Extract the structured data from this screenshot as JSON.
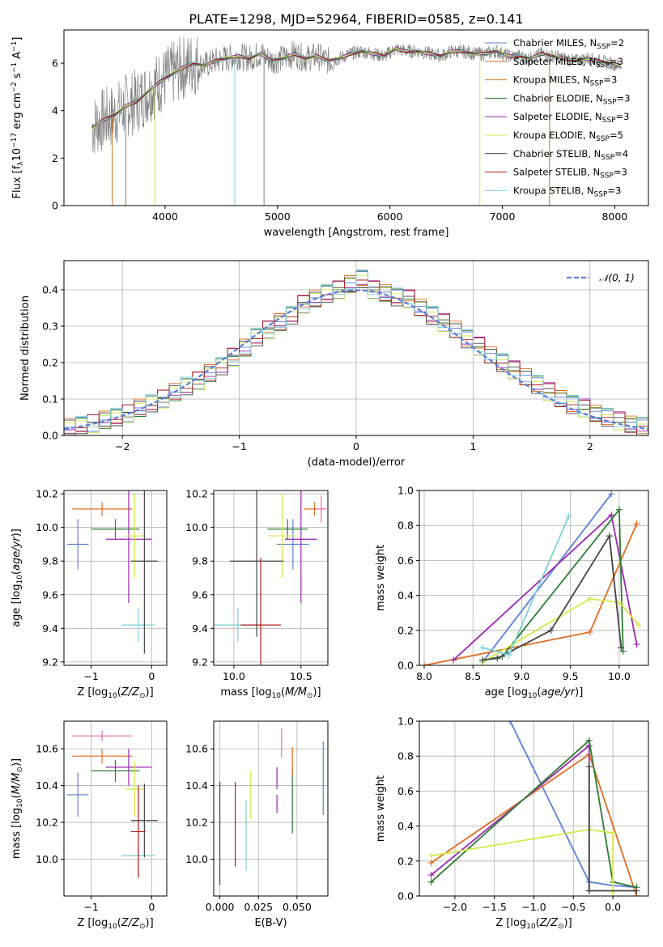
{
  "figure_title": "PLATE=1298, MJD=52964, FIBERID=0585, z=0.141",
  "colors": {
    "cmiles": "#5b7fd8",
    "smiles": "#e06c20",
    "kmiles": "#e07a2a",
    "celodie": "#2e7d32",
    "selodie": "#9b27b0",
    "kelodie": "#d4e84a",
    "cstelib": "#444444",
    "sstelib": "#b01c1c",
    "kstelib": "#7dd0d8",
    "data": "#808080",
    "pink": "#ef6fb0"
  },
  "chart_data": [
    {
      "id": "spectrum",
      "type": "line",
      "title": "PLATE=1298, MJD=52964, FIBERID=0585, z=0.141",
      "xlabel": "wavelength [Angstrom, rest frame]",
      "ylabel": "Flux [f_λ 10^-17 erg cm^-2 s^-1 A^-1]",
      "xlim": [
        3100,
        8300
      ],
      "ylim": [
        0,
        7.4
      ],
      "xticks": [
        "4000",
        "5000",
        "6000",
        "7000",
        "8000"
      ],
      "yticks": [
        "0",
        "2",
        "4",
        "6"
      ],
      "legend_position": "right",
      "x": [
        3350,
        3450,
        3550,
        3650,
        3750,
        3850,
        3950,
        4050,
        4150,
        4250,
        4350,
        4450,
        4550,
        4650,
        4750,
        4850,
        4950,
        5050,
        5150,
        5250,
        5350,
        5450,
        5550,
        5650,
        5750,
        5850,
        5950,
        6050,
        6150,
        6250,
        6350,
        6450,
        6550,
        6650,
        6750,
        6850,
        6950,
        7050,
        7150,
        7250,
        7350,
        7450,
        7550,
        7650,
        7750,
        7850,
        7950,
        8050
      ],
      "y": [
        3.3,
        3.6,
        3.8,
        4.2,
        4.4,
        4.8,
        5.2,
        5.5,
        5.8,
        6.0,
        5.9,
        6.1,
        6.2,
        6.3,
        6.2,
        6.4,
        6.1,
        6.2,
        6.4,
        6.2,
        6.3,
        6.1,
        6.2,
        6.4,
        6.5,
        6.4,
        6.3,
        6.6,
        6.5,
        6.5,
        6.4,
        6.3,
        6.5,
        6.5,
        6.4,
        6.4,
        6.5,
        6.3,
        6.3,
        6.2,
        6.4,
        6.3,
        6.2,
        6.1,
        6.2,
        6.1,
        6.0,
        5.9
      ],
      "series": [
        {
          "label": "Chabrier MILES, N",
          "sub": "SSP",
          "count": "=2",
          "color": "#5b7fd8"
        },
        {
          "label": "Salpeter MILES, N",
          "sub": "SSP",
          "count": "=3",
          "color": "#e06c20"
        },
        {
          "label": "Kroupa MILES, N",
          "sub": "SSP",
          "count": "=3",
          "color": "#e07a2a"
        },
        {
          "label": "Chabrier ELODIE, N",
          "sub": "SSP",
          "count": "=3",
          "color": "#2e7d32"
        },
        {
          "label": "Salpeter ELODIE, N",
          "sub": "SSP",
          "count": "=3",
          "color": "#9b27b0"
        },
        {
          "label": "Kroupa ELODIE, N",
          "sub": "SSP",
          "count": "=5",
          "color": "#d4e84a"
        },
        {
          "label": "Chabrier STELIB, N",
          "sub": "SSP",
          "count": "=4",
          "color": "#444444"
        },
        {
          "label": "Salpeter STELIB, N",
          "sub": "SSP",
          "count": "=3",
          "color": "#b01c1c"
        },
        {
          "label": "Kroupa STELIB, N",
          "sub": "SSP",
          "count": "=3",
          "color": "#7dd0d8"
        }
      ]
    },
    {
      "id": "residual_hist",
      "type": "line",
      "xlabel": "(data-model)/error",
      "ylabel": "Normed distribution",
      "xlim": [
        -2.5,
        2.5
      ],
      "ylim": [
        0,
        0.48
      ],
      "xticks": [
        "−2",
        "−1",
        "0",
        "1",
        "2"
      ],
      "yticks": [
        "0.0",
        "0.1",
        "0.2",
        "0.3",
        "0.4"
      ],
      "grid": true,
      "legend_position": "top-right",
      "legend": "N(0,1)",
      "x": [
        -2.5,
        -2.4,
        -2.3,
        -2.2,
        -2.1,
        -2.0,
        -1.9,
        -1.8,
        -1.7,
        -1.6,
        -1.5,
        -1.4,
        -1.3,
        -1.2,
        -1.1,
        -1.0,
        -0.9,
        -0.8,
        -0.7,
        -0.6,
        -0.5,
        -0.4,
        -0.3,
        -0.2,
        -0.1,
        0.0,
        0.1,
        0.2,
        0.3,
        0.4,
        0.5,
        0.6,
        0.7,
        0.8,
        0.9,
        1.0,
        1.1,
        1.2,
        1.3,
        1.4,
        1.5,
        1.6,
        1.7,
        1.8,
        1.9,
        2.0,
        2.1,
        2.2,
        2.3,
        2.4
      ],
      "y": [
        0.022,
        0.028,
        0.033,
        0.042,
        0.05,
        0.06,
        0.075,
        0.088,
        0.1,
        0.118,
        0.135,
        0.15,
        0.17,
        0.19,
        0.215,
        0.24,
        0.27,
        0.29,
        0.31,
        0.33,
        0.36,
        0.375,
        0.39,
        0.4,
        0.415,
        0.43,
        0.4,
        0.39,
        0.38,
        0.375,
        0.35,
        0.33,
        0.31,
        0.29,
        0.265,
        0.245,
        0.22,
        0.2,
        0.18,
        0.16,
        0.14,
        0.12,
        0.1,
        0.085,
        0.075,
        0.06,
        0.05,
        0.04,
        0.03,
        0.025
      ]
    },
    {
      "id": "z_vs_age",
      "type": "scatter",
      "xlabel": "Z [log10(Z/Z⊙)]",
      "ylabel": "age  [log10(age/yr)]",
      "xlim": [
        -1.45,
        0.25
      ],
      "ylim": [
        9.18,
        10.22
      ],
      "xticks": [
        "−1",
        "0"
      ],
      "yticks": [
        "9.2",
        "9.4",
        "9.6",
        "9.8",
        "10.0",
        "10.2"
      ],
      "grid": true,
      "points": [
        {
          "x": -1.22,
          "y": 9.9,
          "xerr": 0.18,
          "yerr": 0.15,
          "color": "#5b7fd8"
        },
        {
          "x": -0.82,
          "y": 10.11,
          "xerr": 0.5,
          "yerr": 0.04,
          "color": "#e06c20"
        },
        {
          "x": -0.38,
          "y": 9.93,
          "xerr": 0.38,
          "yerr": 0.38,
          "color": "#9b27b0"
        },
        {
          "x": -0.6,
          "y": 9.99,
          "xerr": 0.4,
          "yerr": 0.06,
          "color": "#2e7d32"
        },
        {
          "x": -0.28,
          "y": 9.95,
          "xerr": 0.15,
          "yerr": 0.25,
          "color": "#d4e84a"
        },
        {
          "x": -0.22,
          "y": 9.42,
          "xerr": 0.28,
          "yerr": 0.1,
          "color": "#7dd0d8"
        },
        {
          "x": -0.12,
          "y": 9.8,
          "xerr": 0.22,
          "yerr": 0.55,
          "color": "#444444"
        }
      ]
    },
    {
      "id": "mass_vs_age",
      "type": "scatter",
      "xlabel": "mass [log10(M/M⊙)]",
      "ylabel": "",
      "xlim": [
        9.85,
        10.7
      ],
      "ylim": [
        9.18,
        10.22
      ],
      "xticks": [
        "10.0",
        "10.5"
      ],
      "yticks": [
        "9.2",
        "9.4",
        "9.6",
        "9.8",
        "10.0",
        "10.2"
      ],
      "grid": true,
      "points": [
        {
          "x": 10.44,
          "y": 9.9,
          "xerr": 0.12,
          "yerr": 0.15,
          "color": "#5b7fd8"
        },
        {
          "x": 10.6,
          "y": 10.11,
          "xerr": 0.08,
          "yerr": 0.04,
          "color": "#e06c20"
        },
        {
          "x": 10.5,
          "y": 9.93,
          "xerr": 0.12,
          "yerr": 0.38,
          "color": "#9b27b0"
        },
        {
          "x": 10.4,
          "y": 9.99,
          "xerr": 0.15,
          "yerr": 0.06,
          "color": "#2e7d32"
        },
        {
          "x": 10.36,
          "y": 9.95,
          "xerr": 0.1,
          "yerr": 0.25,
          "color": "#d4e84a"
        },
        {
          "x": 10.03,
          "y": 9.42,
          "xerr": 0.22,
          "yerr": 0.1,
          "color": "#7dd0d8"
        },
        {
          "x": 10.17,
          "y": 9.8,
          "xerr": 0.2,
          "yerr": 0.45,
          "color": "#444444"
        },
        {
          "x": 10.2,
          "y": 9.42,
          "xerr": 0.15,
          "yerr": 0.4,
          "color": "#b01c1c"
        },
        {
          "x": 10.65,
          "y": 10.11,
          "xerr": 0.04,
          "yerr": 0.08,
          "color": "#ef6fb0"
        }
      ]
    },
    {
      "id": "age_vs_weight",
      "type": "line",
      "xlabel": "age  [log10(age/yr)]",
      "ylabel": "mass weight",
      "xlim": [
        7.95,
        10.3
      ],
      "ylim": [
        0,
        1
      ],
      "xticks": [
        "8.0",
        "8.5",
        "9.0",
        "9.5",
        "10.0"
      ],
      "yticks": [
        "0.0",
        "0.2",
        "0.4",
        "0.6",
        "0.8",
        "1.0"
      ],
      "grid": true,
      "series": [
        {
          "color": "#5b7fd8",
          "x": [
            8.6,
            9.92
          ],
          "y": [
            0.02,
            0.98
          ]
        },
        {
          "color": "#e06c20",
          "x": [
            8.0,
            9.7,
            10.18
          ],
          "y": [
            0.0,
            0.19,
            0.81
          ]
        },
        {
          "color": "#9b27b0",
          "x": [
            8.3,
            9.92,
            10.18
          ],
          "y": [
            0.03,
            0.86,
            0.12
          ]
        },
        {
          "color": "#2e7d32",
          "x": [
            8.6,
            8.8,
            10.0,
            10.04
          ],
          "y": [
            0.03,
            0.05,
            0.89,
            0.08
          ]
        },
        {
          "color": "#d4e84a",
          "x": [
            8.6,
            9.7,
            10.0,
            10.2
          ],
          "y": [
            0.02,
            0.38,
            0.36,
            0.23
          ]
        },
        {
          "color": "#444444",
          "x": [
            8.6,
            8.75,
            9.3,
            9.9,
            10.02
          ],
          "y": [
            0.03,
            0.04,
            0.2,
            0.74,
            0.1
          ]
        },
        {
          "color": "#7dd0d8",
          "x": [
            8.6,
            8.87,
            9.48
          ],
          "y": [
            0.1,
            0.06,
            0.85
          ]
        }
      ]
    },
    {
      "id": "z_vs_mass",
      "type": "scatter",
      "xlabel": "Z [log10(Z/Z⊙)]",
      "ylabel": "mass [log10(M/M⊙)]",
      "xlim": [
        -1.45,
        0.25
      ],
      "ylim": [
        9.8,
        10.75
      ],
      "xticks": [
        "−1",
        "0"
      ],
      "yticks": [
        "10.0",
        "10.2",
        "10.4",
        "10.6"
      ],
      "grid": true,
      "points": [
        {
          "x": -1.22,
          "y": 10.35,
          "xerr": 0.18,
          "yerr": 0.12,
          "color": "#5b7fd8"
        },
        {
          "x": -0.82,
          "y": 10.56,
          "xerr": 0.5,
          "yerr": 0.04,
          "color": "#e06c20"
        },
        {
          "x": -0.82,
          "y": 10.67,
          "xerr": 0.5,
          "yerr": 0.03,
          "color": "#ef6fb0"
        },
        {
          "x": -0.38,
          "y": 10.5,
          "xerr": 0.38,
          "yerr": 0.1,
          "color": "#9b27b0"
        },
        {
          "x": -0.6,
          "y": 10.48,
          "xerr": 0.4,
          "yerr": 0.06,
          "color": "#2e7d32"
        },
        {
          "x": -0.28,
          "y": 10.38,
          "xerr": 0.15,
          "yerr": 0.15,
          "color": "#d4e84a"
        },
        {
          "x": -0.22,
          "y": 10.02,
          "xerr": 0.28,
          "yerr": 0.08,
          "color": "#7dd0d8"
        },
        {
          "x": -0.12,
          "y": 10.21,
          "xerr": 0.22,
          "yerr": 0.2,
          "color": "#444444"
        },
        {
          "x": -0.22,
          "y": 10.15,
          "xerr": 0.12,
          "yerr": 0.25,
          "color": "#b01c1c"
        }
      ]
    },
    {
      "id": "ebv_vs_mass",
      "type": "scatter",
      "xlabel": "E(B-V)",
      "ylabel": "",
      "xlim": [
        -0.004,
        0.07
      ],
      "ylim": [
        9.8,
        10.75
      ],
      "xticks": [
        "0.000",
        "0.025",
        "0.050"
      ],
      "yticks": [
        "10.0",
        "10.2",
        "10.4",
        "10.6"
      ],
      "grid": true,
      "points": [
        {
          "x": 0.0,
          "y": 10.14,
          "yerr": 0.28,
          "color": "#444444"
        },
        {
          "x": 0.01,
          "y": 10.19,
          "yerr": 0.23,
          "color": "#b01c1c"
        },
        {
          "x": 0.017,
          "y": 10.13,
          "yerr": 0.19,
          "color": "#7dd0d8"
        },
        {
          "x": 0.02,
          "y": 10.35,
          "yerr": 0.13,
          "color": "#d4e84a"
        },
        {
          "x": 0.037,
          "y": 10.44,
          "yerr": 0.06,
          "color": "#9b27b0"
        },
        {
          "x": 0.037,
          "y": 10.3,
          "yerr": 0.05,
          "color": "#9b27b0"
        },
        {
          "x": 0.04,
          "y": 10.63,
          "yerr": 0.08,
          "color": "#ef6fb0"
        },
        {
          "x": 0.047,
          "y": 10.32,
          "yerr": 0.18,
          "color": "#2e7d32"
        },
        {
          "x": 0.047,
          "y": 10.53,
          "yerr": 0.08,
          "color": "#e06c20"
        },
        {
          "x": 0.067,
          "y": 10.44,
          "yerr": 0.2,
          "color": "#5b7fd8"
        }
      ]
    },
    {
      "id": "z_vs_weight",
      "type": "line",
      "xlabel": "Z [log10(Z/Z⊙)]",
      "ylabel": "mass weight",
      "xlim": [
        -2.45,
        0.45
      ],
      "ylim": [
        0,
        1
      ],
      "xticks": [
        "−2.0",
        "−1.5",
        "−1.0",
        "−0.5",
        "0.0"
      ],
      "yticks": [
        "0.0",
        "0.2",
        "0.4",
        "0.6",
        "0.8",
        "1.0"
      ],
      "grid": true,
      "series": [
        {
          "color": "#5b7fd8",
          "x": [
            -1.3,
            -0.3,
            0.0,
            0.3
          ],
          "y": [
            1.0,
            0.08,
            0.06,
            0.05
          ]
        },
        {
          "color": "#e06c20",
          "x": [
            -2.3,
            -0.3,
            0.3
          ],
          "y": [
            0.19,
            0.81,
            0.0
          ]
        },
        {
          "color": "#9b27b0",
          "x": [
            -2.3,
            -0.3,
            -0.3
          ],
          "y": [
            0.12,
            0.86,
            0.03
          ]
        },
        {
          "color": "#2e7d32",
          "x": [
            -2.3,
            -0.3,
            0.0,
            0.3
          ],
          "y": [
            0.08,
            0.89,
            0.08,
            0.05
          ]
        },
        {
          "color": "#d4e84a",
          "x": [
            -2.3,
            -0.3,
            0.0,
            0.0
          ],
          "y": [
            0.23,
            0.38,
            0.36,
            0.02
          ]
        },
        {
          "color": "#444444",
          "x": [
            -0.3,
            -0.3,
            0.3
          ],
          "y": [
            0.74,
            0.03,
            0.03
          ]
        }
      ]
    }
  ]
}
